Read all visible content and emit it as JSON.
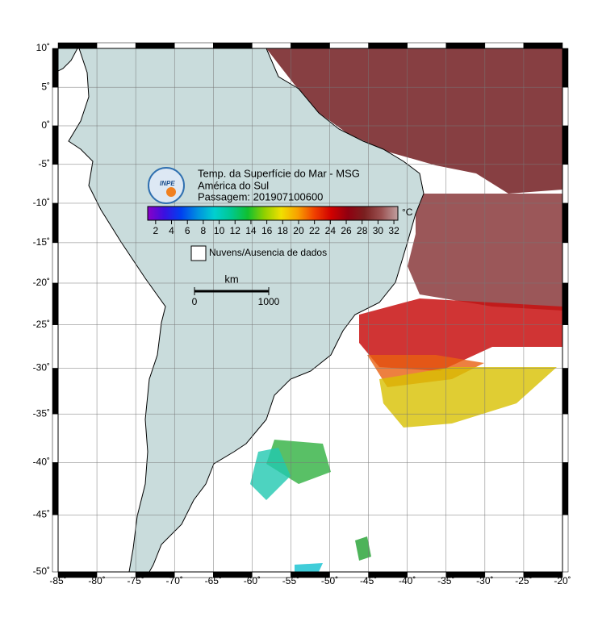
{
  "map": {
    "type": "map",
    "projection": "mercator",
    "title_lines": [
      "Temp. da Superfície do Mar - MSG",
      "América do Sul",
      "Passagem: 201907100600"
    ],
    "logo": "INPE",
    "xlim": [
      -85,
      -20
    ],
    "ylim": [
      -50,
      10
    ],
    "xticks": [
      {
        "value": -85,
        "label": "-85˚"
      },
      {
        "value": -80,
        "label": "-80˚"
      },
      {
        "value": -75,
        "label": "-75˚"
      },
      {
        "value": -70,
        "label": "-70˚"
      },
      {
        "value": -65,
        "label": "-65˚"
      },
      {
        "value": -60,
        "label": "-60˚"
      },
      {
        "value": -55,
        "label": "-55˚"
      },
      {
        "value": -50,
        "label": "-50˚"
      },
      {
        "value": -45,
        "label": "-45˚"
      },
      {
        "value": -40,
        "label": "-40˚"
      },
      {
        "value": -35,
        "label": "-35˚"
      },
      {
        "value": -30,
        "label": "-30˚"
      },
      {
        "value": -25,
        "label": "-25˚"
      },
      {
        "value": -20,
        "label": "-20˚"
      }
    ],
    "yticks": [
      {
        "value": 10,
        "label": "10˚"
      },
      {
        "value": 5,
        "label": "5˚"
      },
      {
        "value": 0,
        "label": "0˚"
      },
      {
        "value": -5,
        "label": "-5˚"
      },
      {
        "value": -10,
        "label": "-10˚"
      },
      {
        "value": -15,
        "label": "-15˚"
      },
      {
        "value": -20,
        "label": "-20˚"
      },
      {
        "value": -25,
        "label": "-25˚"
      },
      {
        "value": -30,
        "label": "-30˚"
      },
      {
        "value": -35,
        "label": "-35˚"
      },
      {
        "value": -40,
        "label": "-40˚"
      },
      {
        "value": -45,
        "label": "-45˚"
      },
      {
        "value": -50,
        "label": "-50˚"
      }
    ],
    "grid": true,
    "colorbar": {
      "unit": "°C",
      "clim": [
        1,
        32.5
      ],
      "ticks": [
        2,
        4,
        6,
        8,
        10,
        12,
        14,
        16,
        18,
        20,
        22,
        24,
        26,
        28,
        30,
        32
      ],
      "colors": [
        "#8a00c8",
        "#3a10e0",
        "#0040f0",
        "#0090e0",
        "#00d0d0",
        "#00c890",
        "#10c030",
        "#90d000",
        "#f0e000",
        "#f8a000",
        "#f04000",
        "#d00000",
        "#900010",
        "#7a2020",
        "#9a5050",
        "#c0a0a0"
      ]
    },
    "legend": "Nuvens/Ausencia de dados",
    "scale_bar": {
      "unit": "km",
      "ends": [
        0,
        1000
      ]
    }
  }
}
